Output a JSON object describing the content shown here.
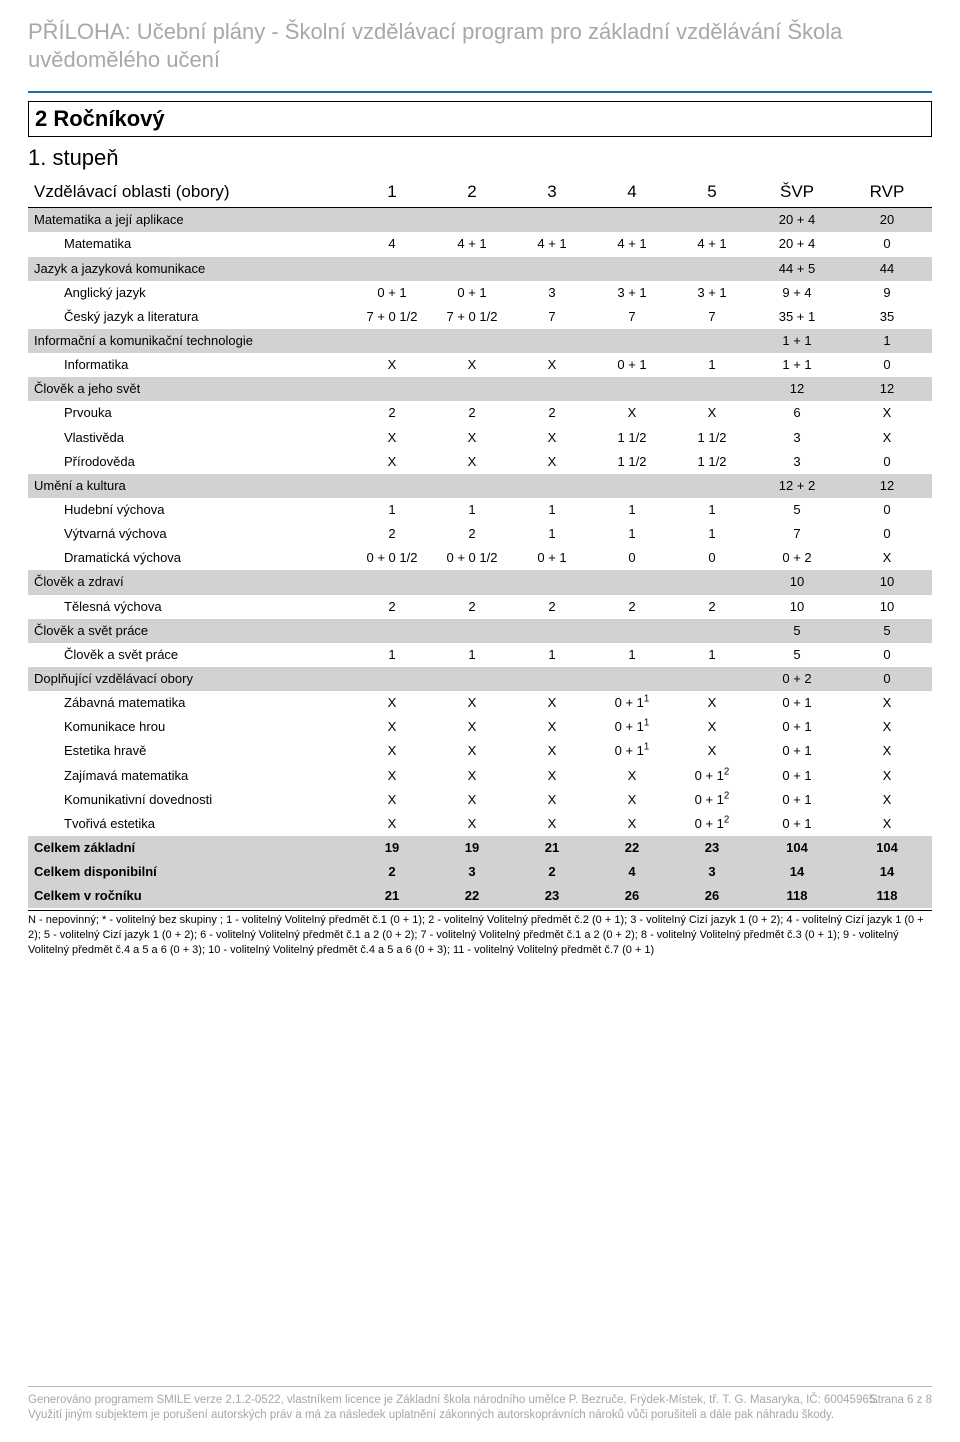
{
  "header": {
    "title": "PŘÍLOHA: Učební plány - Školní vzdělávací program pro základní vzdělávání Škola uvědomělého učení"
  },
  "plan": {
    "box_title": "2 Ročníkový",
    "level_title": "1. stupeň"
  },
  "table": {
    "head": {
      "areas_label": "Vzdělávací oblasti (obory)",
      "cols": [
        "1",
        "2",
        "3",
        "4",
        "5"
      ],
      "svp": "ŠVP",
      "rvp": "RVP"
    },
    "rows": [
      {
        "type": "area",
        "name": "Matematika a její aplikace",
        "c": [
          "",
          "",
          "",
          "",
          ""
        ],
        "svp": "20 + 4",
        "rvp": "20"
      },
      {
        "type": "subject",
        "name": "Matematika",
        "c": [
          "4",
          "4 + 1",
          "4 + 1",
          "4 + 1",
          "4 + 1"
        ],
        "svp": "20 + 4",
        "rvp": "0"
      },
      {
        "type": "area",
        "name": "Jazyk a jazyková komunikace",
        "c": [
          "",
          "",
          "",
          "",
          ""
        ],
        "svp": "44 + 5",
        "rvp": "44"
      },
      {
        "type": "subject",
        "name": "Anglický jazyk",
        "c": [
          "0 + 1",
          "0 + 1",
          "3",
          "3 + 1",
          "3 + 1"
        ],
        "svp": "9 + 4",
        "rvp": "9"
      },
      {
        "type": "subject",
        "name": "Český jazyk a literatura",
        "c": [
          "7 + 0 1/2",
          "7 + 0 1/2",
          "7",
          "7",
          "7"
        ],
        "svp": "35 + 1",
        "rvp": "35"
      },
      {
        "type": "area",
        "name": "Informační a komunikační technologie",
        "c": [
          "",
          "",
          "",
          "",
          ""
        ],
        "svp": "1 + 1",
        "rvp": "1"
      },
      {
        "type": "subject",
        "name": "Informatika",
        "c": [
          "X",
          "X",
          "X",
          "0 + 1",
          "1"
        ],
        "svp": "1 + 1",
        "rvp": "0"
      },
      {
        "type": "area",
        "name": "Člověk a jeho svět",
        "c": [
          "",
          "",
          "",
          "",
          ""
        ],
        "svp": "12",
        "rvp": "12"
      },
      {
        "type": "subject",
        "name": "Prvouka",
        "c": [
          "2",
          "2",
          "2",
          "X",
          "X"
        ],
        "svp": "6",
        "rvp": "X"
      },
      {
        "type": "subject",
        "name": "Vlastivěda",
        "c": [
          "X",
          "X",
          "X",
          "1 1/2",
          "1 1/2"
        ],
        "svp": "3",
        "rvp": "X"
      },
      {
        "type": "subject",
        "name": "Přírodověda",
        "c": [
          "X",
          "X",
          "X",
          "1 1/2",
          "1 1/2"
        ],
        "svp": "3",
        "rvp": "0"
      },
      {
        "type": "area",
        "name": "Umění a kultura",
        "c": [
          "",
          "",
          "",
          "",
          ""
        ],
        "svp": "12 + 2",
        "rvp": "12"
      },
      {
        "type": "subject",
        "name": "Hudební výchova",
        "c": [
          "1",
          "1",
          "1",
          "1",
          "1"
        ],
        "svp": "5",
        "rvp": "0"
      },
      {
        "type": "subject",
        "name": "Výtvarná výchova",
        "c": [
          "2",
          "2",
          "1",
          "1",
          "1"
        ],
        "svp": "7",
        "rvp": "0"
      },
      {
        "type": "subject",
        "name": "Dramatická výchova",
        "c": [
          "0 + 0 1/2",
          "0 + 0 1/2",
          "0 + 1",
          "0",
          "0"
        ],
        "svp": "0 + 2",
        "rvp": "X"
      },
      {
        "type": "area",
        "name": "Člověk a zdraví",
        "c": [
          "",
          "",
          "",
          "",
          ""
        ],
        "svp": "10",
        "rvp": "10"
      },
      {
        "type": "subject",
        "name": "Tělesná výchova",
        "c": [
          "2",
          "2",
          "2",
          "2",
          "2"
        ],
        "svp": "10",
        "rvp": "10"
      },
      {
        "type": "area",
        "name": "Člověk a svět práce",
        "c": [
          "",
          "",
          "",
          "",
          ""
        ],
        "svp": "5",
        "rvp": "5"
      },
      {
        "type": "subject",
        "name": "Člověk a svět práce",
        "c": [
          "1",
          "1",
          "1",
          "1",
          "1"
        ],
        "svp": "5",
        "rvp": "0"
      },
      {
        "type": "area",
        "name": "Doplňující vzdělávací obory",
        "c": [
          "",
          "",
          "",
          "",
          ""
        ],
        "svp": "0 + 2",
        "rvp": "0"
      },
      {
        "type": "subject",
        "name": "Zábavná matematika",
        "c": [
          "X",
          "X",
          "X",
          "0 + 1¹",
          "X"
        ],
        "svp": "0 + 1",
        "rvp": "X"
      },
      {
        "type": "subject",
        "name": "Komunikace hrou",
        "c": [
          "X",
          "X",
          "X",
          "0 + 1¹",
          "X"
        ],
        "svp": "0 + 1",
        "rvp": "X"
      },
      {
        "type": "subject",
        "name": "Estetika hravě",
        "c": [
          "X",
          "X",
          "X",
          "0 + 1¹",
          "X"
        ],
        "svp": "0 + 1",
        "rvp": "X"
      },
      {
        "type": "subject",
        "name": "Zajímavá matematika",
        "c": [
          "X",
          "X",
          "X",
          "X",
          "0 + 1²"
        ],
        "svp": "0 + 1",
        "rvp": "X"
      },
      {
        "type": "subject",
        "name": "Komunikativní dovednosti",
        "c": [
          "X",
          "X",
          "X",
          "X",
          "0 + 1²"
        ],
        "svp": "0 + 1",
        "rvp": "X"
      },
      {
        "type": "subject",
        "name": "Tvořivá estetika",
        "c": [
          "X",
          "X",
          "X",
          "X",
          "0 + 1²"
        ],
        "svp": "0 + 1",
        "rvp": "X"
      },
      {
        "type": "total",
        "name": "Celkem základní",
        "c": [
          "19",
          "19",
          "21",
          "22",
          "23"
        ],
        "svp": "104",
        "rvp": "104"
      },
      {
        "type": "total",
        "name": "Celkem disponibilní",
        "c": [
          "2",
          "3",
          "2",
          "4",
          "3"
        ],
        "svp": "14",
        "rvp": "14"
      },
      {
        "type": "total",
        "name": "Celkem v ročníku",
        "c": [
          "21",
          "22",
          "23",
          "26",
          "26"
        ],
        "svp": "118",
        "rvp": "118"
      }
    ]
  },
  "footnote": "N - nepovinný; * - volitelný bez skupiny ; 1  - volitelný Volitelný předmět č.1 (0 + 1); 2  - volitelný Volitelný předmět č.2 (0 + 1); 3  - volitelný Cizí jazyk 1 (0 + 2); 4  - volitelný Cizí jazyk 1 (0 + 2); 5  - volitelný Cizí jazyk 1 (0 + 2); 6  - volitelný Volitelný předmět č.1 a 2 (0 + 2); 7  - volitelný Volitelný předmět č.1 a 2 (0 + 2); 8  - volitelný Volitelný předmět č.3 (0 + 1); 9  - volitelný Volitelný předmět č.4 a 5 a 6 (0 + 3); 10  - volitelný Volitelný předmět č.4 a 5 a 6 (0 + 3); 11  - volitelný Volitelný předmět č.7 (0 + 1)",
  "footer": {
    "line1": "Generováno programem SMILE verze 2.1.2-0522, vlastníkem licence je Základní škola národního umělce P. Bezruče, Frýdek-Místek, tř. T. G. Masaryka, IČ: 60045965.",
    "line2": "Využití jiným subjektem je porušení autorských práv a má za následek uplatnění zákonných autorskoprávních nároků vůči porušiteli a dále pak náhradu škody.",
    "page": "Strana 6 z 8"
  }
}
